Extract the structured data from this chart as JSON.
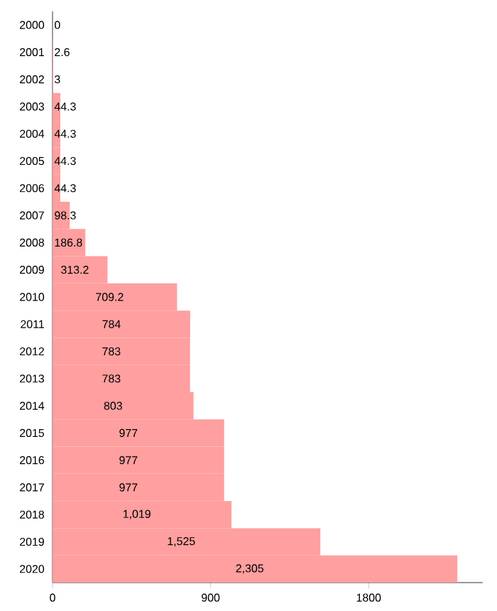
{
  "chart_data": {
    "type": "bar",
    "orientation": "horizontal",
    "categories": [
      "2000",
      "2001",
      "2002",
      "2003",
      "2004",
      "2005",
      "2006",
      "2007",
      "2008",
      "2009",
      "2010",
      "2011",
      "2012",
      "2013",
      "2014",
      "2015",
      "2016",
      "2017",
      "2018",
      "2019",
      "2020"
    ],
    "values": [
      0,
      2.6,
      3,
      44.3,
      44.3,
      44.3,
      44.3,
      98.3,
      186.8,
      313.2,
      709.2,
      784,
      783,
      783,
      803,
      977,
      977,
      977,
      1019,
      1525,
      2305
    ],
    "value_labels": [
      "0",
      "2.6",
      "3",
      "44.3",
      "44.3",
      "44.3",
      "44.3",
      "98.3",
      "186.8",
      "313.2",
      "709.2",
      "784",
      "783",
      "783",
      "803",
      "977",
      "977",
      "977",
      "1,019",
      "1,525",
      "2,305"
    ],
    "color": "#ff9f9f",
    "xlim": [
      0,
      2450
    ],
    "xticks": [
      0,
      900,
      1800
    ]
  }
}
